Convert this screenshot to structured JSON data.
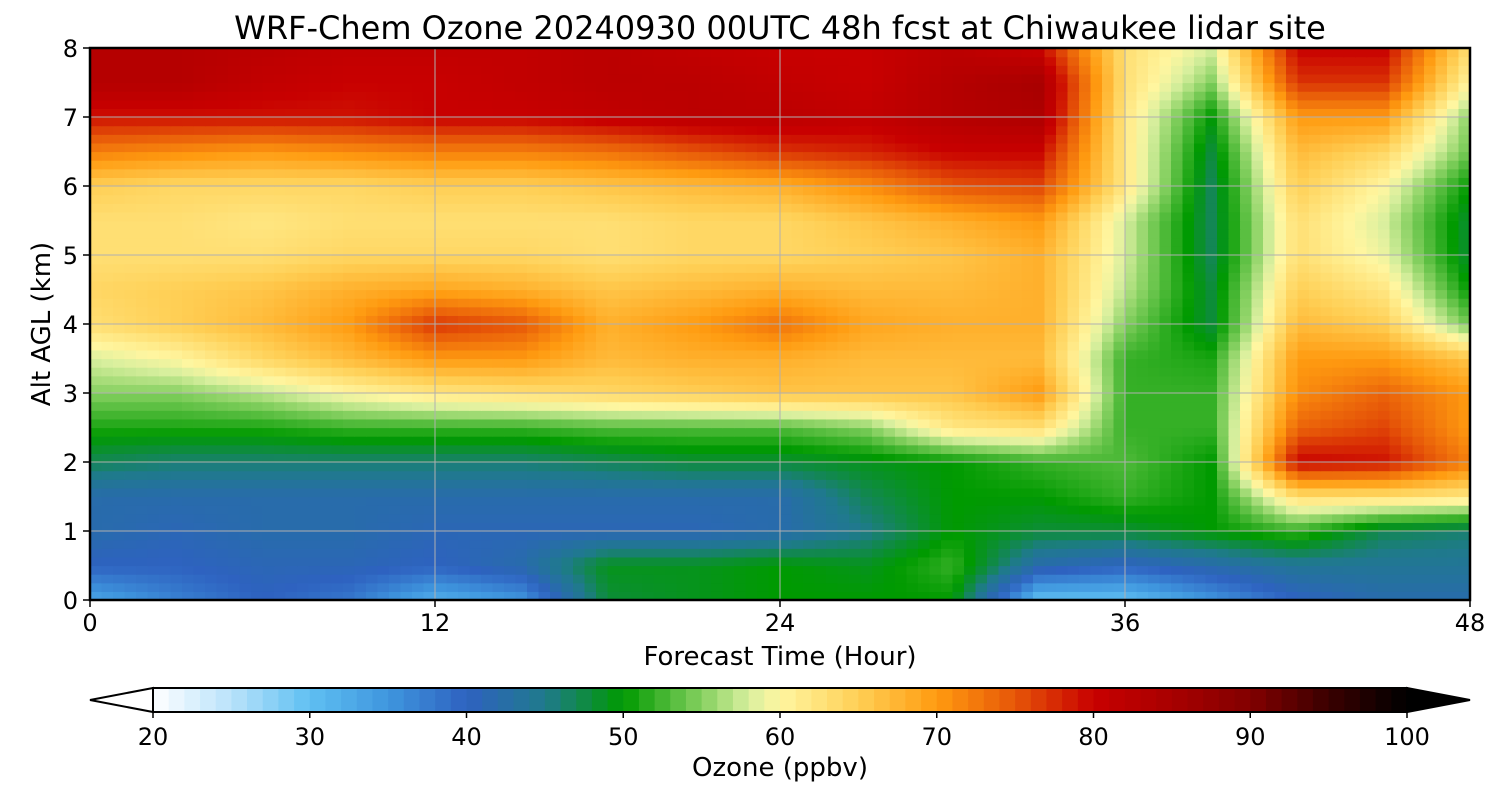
{
  "chart_data": {
    "type": "heatmap",
    "title": "WRF-Chem Ozone  20240930 00UTC 48h fcst at Chiwaukee lidar site",
    "xlabel": "Forecast Time (Hour)",
    "ylabel": "Alt AGL (km)",
    "xlim": [
      0,
      48
    ],
    "ylim": [
      0,
      8
    ],
    "x_ticks": [
      0,
      12,
      24,
      36,
      48
    ],
    "y_ticks": [
      0,
      1,
      2,
      3,
      4,
      5,
      6,
      7,
      8
    ],
    "grid": true,
    "x": [
      0,
      3,
      6,
      9,
      12,
      15,
      18,
      21,
      24,
      27,
      30,
      33,
      36,
      39,
      42,
      45,
      48
    ],
    "y": [
      0,
      0.5,
      1,
      1.5,
      2,
      2.5,
      3,
      3.5,
      4,
      4.5,
      5,
      5.5,
      6,
      6.5,
      7,
      7.5,
      8
    ],
    "z": [
      [
        33,
        37,
        40,
        38,
        32,
        35,
        48,
        49,
        50,
        50,
        50,
        30,
        30,
        35,
        40,
        42,
        42
      ],
      [
        40,
        40,
        41,
        41,
        40,
        42,
        49,
        49,
        50,
        49,
        52,
        42,
        40,
        42,
        44,
        44,
        44
      ],
      [
        42,
        41,
        42,
        42,
        41,
        41,
        41,
        41,
        42,
        45,
        50,
        48,
        48,
        50,
        52,
        47,
        46
      ],
      [
        42,
        42,
        42,
        42,
        42,
        42,
        42,
        42,
        42,
        47,
        50,
        50,
        52,
        50,
        63,
        63,
        62
      ],
      [
        47,
        46,
        46,
        46,
        46,
        46,
        47,
        48,
        48,
        49,
        50,
        52,
        53,
        50,
        80,
        79,
        72
      ],
      [
        51,
        51,
        51,
        52,
        52,
        52,
        53,
        53,
        53,
        55,
        62,
        63,
        52,
        52,
        74,
        76,
        70
      ],
      [
        55,
        55,
        57,
        60,
        62,
        63,
        64,
        65,
        66,
        66,
        66,
        70,
        52,
        52,
        71,
        74,
        70
      ],
      [
        58,
        60,
        64,
        67,
        70,
        70,
        67,
        68,
        68,
        67,
        67,
        67,
        52,
        51,
        70,
        70,
        66
      ],
      [
        63,
        65,
        67,
        70,
        77,
        75,
        68,
        70,
        73,
        69,
        68,
        68,
        55,
        48,
        67,
        65,
        54
      ],
      [
        64,
        65,
        66,
        68,
        69,
        68,
        66,
        67,
        68,
        67,
        67,
        68,
        57,
        48,
        65,
        62,
        50
      ],
      [
        63,
        63,
        63,
        64,
        64,
        64,
        63,
        64,
        64,
        65,
        66,
        68,
        58,
        47,
        63,
        59,
        48
      ],
      [
        63,
        63,
        62,
        63,
        63,
        63,
        63,
        64,
        64,
        66,
        68,
        70,
        58,
        47,
        63,
        58,
        48
      ],
      [
        65,
        64,
        64,
        64,
        65,
        65,
        66,
        67,
        68,
        71,
        75,
        76,
        62,
        47,
        65,
        60,
        50
      ],
      [
        72,
        71,
        70,
        71,
        72,
        72,
        73,
        75,
        77,
        78,
        80,
        80,
        62,
        48,
        67,
        64,
        54
      ],
      [
        79,
        79,
        79,
        79,
        80,
        80,
        81,
        82,
        82,
        81,
        83,
        84,
        62,
        50,
        70,
        70,
        55
      ],
      [
        83,
        83,
        81,
        80,
        80,
        81,
        82,
        82,
        81,
        80,
        83,
        85,
        63,
        55,
        77,
        77,
        60
      ],
      [
        83,
        83,
        82,
        81,
        81,
        81,
        82,
        81,
        80,
        80,
        82,
        80,
        63,
        58,
        80,
        80,
        63
      ]
    ],
    "colorbar": {
      "label": "Ozone  (ppbv)",
      "min": 20,
      "max": 100,
      "ticks": [
        20,
        30,
        40,
        50,
        60,
        70,
        80,
        90,
        100
      ],
      "extend": "both"
    },
    "colormap": [
      {
        "v": 20,
        "c": "#ffffff"
      },
      {
        "v": 25,
        "c": "#b9e2fa"
      },
      {
        "v": 30,
        "c": "#5fbff2"
      },
      {
        "v": 35,
        "c": "#3f96de"
      },
      {
        "v": 40,
        "c": "#2e62c0"
      },
      {
        "v": 45,
        "c": "#1f7a8c"
      },
      {
        "v": 50,
        "c": "#009a00"
      },
      {
        "v": 55,
        "c": "#85d060"
      },
      {
        "v": 58,
        "c": "#d8ef9e"
      },
      {
        "v": 60,
        "c": "#fff6a0"
      },
      {
        "v": 65,
        "c": "#ffcf55"
      },
      {
        "v": 70,
        "c": "#ff9b10"
      },
      {
        "v": 75,
        "c": "#e65608"
      },
      {
        "v": 80,
        "c": "#c80000"
      },
      {
        "v": 85,
        "c": "#a80000"
      },
      {
        "v": 90,
        "c": "#820000"
      },
      {
        "v": 95,
        "c": "#3a0000"
      },
      {
        "v": 100,
        "c": "#000000"
      }
    ]
  }
}
